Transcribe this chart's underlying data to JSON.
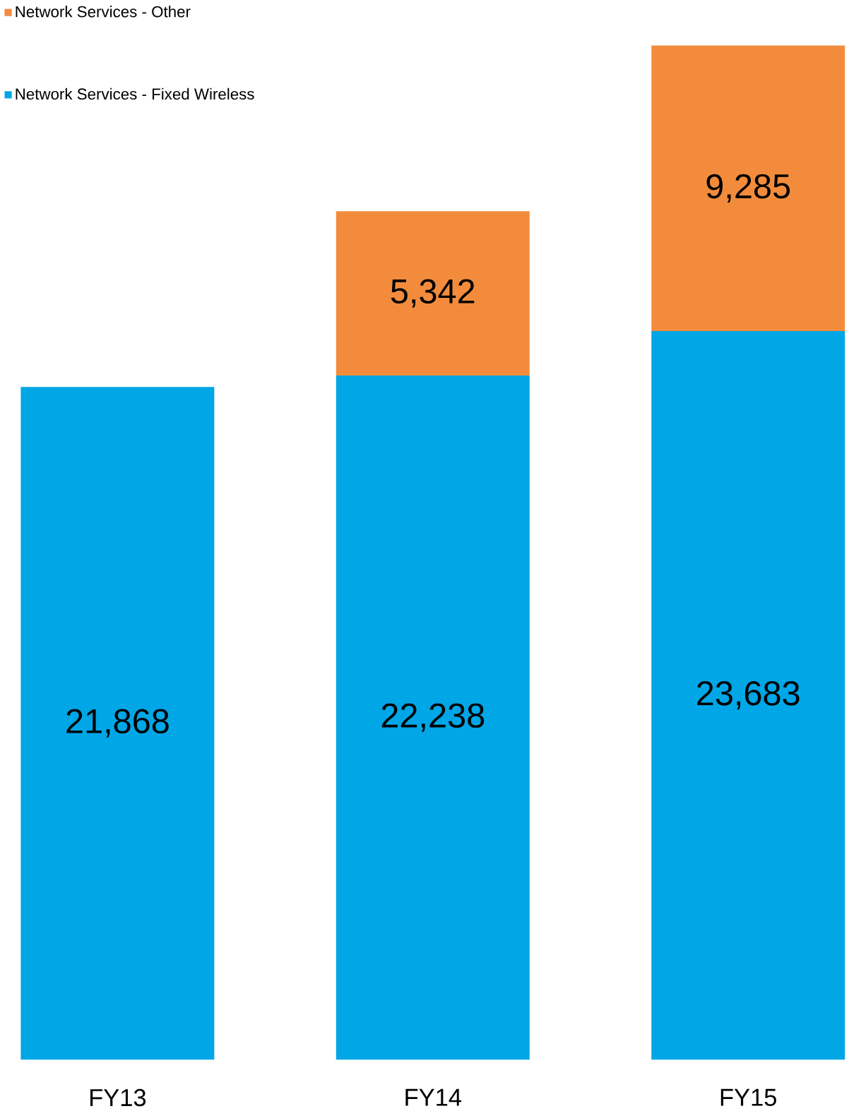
{
  "chart_data": {
    "type": "bar",
    "stacked": true,
    "categories": [
      "FY13",
      "FY14",
      "FY15"
    ],
    "series": [
      {
        "name": "Network Services - Fixed Wireless",
        "color": "#00a6e6",
        "values": [
          21868,
          22238,
          23683
        ],
        "value_labels": [
          "21,868",
          "22,238",
          "23,683"
        ]
      },
      {
        "name": "Network Services - Other",
        "color": "#f28c3c",
        "values": [
          null,
          5342,
          9285
        ],
        "value_labels": [
          null,
          "5,342",
          "9,285"
        ]
      }
    ],
    "legend": "top left"
  }
}
